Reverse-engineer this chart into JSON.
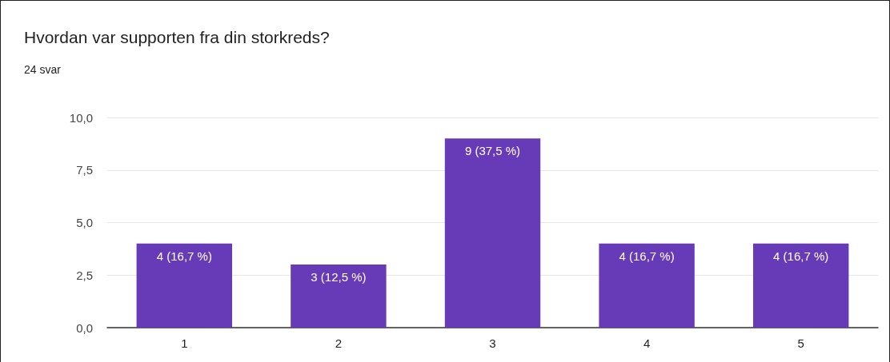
{
  "chart_data": {
    "type": "bar",
    "title": "Hvordan var supporten fra din storkreds?",
    "subtitle": "24 svar",
    "categories": [
      "1",
      "2",
      "3",
      "4",
      "5"
    ],
    "values": [
      4,
      3,
      9,
      4,
      4
    ],
    "color": "#673ab7",
    "value_labels": [
      "4 (16,7 %)",
      "3 (12,5 %)",
      "9 (37,5 %)",
      "4 (16,7 %)",
      "4 (16,7 %)"
    ],
    "ylim": [
      0,
      10
    ],
    "yticks": [
      {
        "value": 0,
        "label": "0,0"
      },
      {
        "value": 2.5,
        "label": "2,5"
      },
      {
        "value": 5,
        "label": "5,0"
      },
      {
        "value": 7.5,
        "label": "7,5"
      },
      {
        "value": 10,
        "label": "10,0"
      }
    ],
    "grid": "y"
  }
}
